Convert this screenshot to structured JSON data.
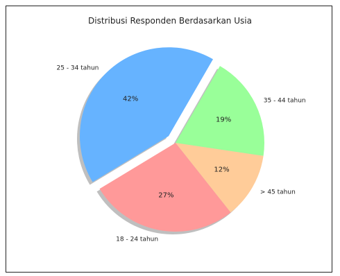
{
  "chart_data": {
    "type": "pie",
    "title": "Distribusi Responden Berdasarkan Usia",
    "categories": [
      "25 - 34 tahun",
      "18 - 24 tahun",
      "> 45 tahun",
      "35 - 44 tahun"
    ],
    "values": [
      42,
      27,
      12,
      19
    ],
    "value_labels": [
      "42%",
      "27%",
      "12%",
      "19%"
    ],
    "colors": [
      "#66b3ff",
      "#ff9999",
      "#ffcc99",
      "#99ff99"
    ],
    "exploded": "25 - 34 tahun",
    "shadow": true,
    "legend": "none"
  }
}
